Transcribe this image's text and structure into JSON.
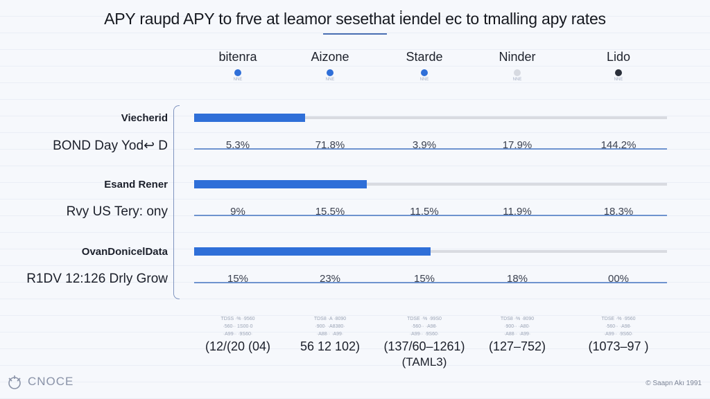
{
  "chart_data": {
    "type": "bar",
    "title": "APY raupd APY to frve at leamor sesethat i̇endel ec to tmalling apy rates",
    "providers": [
      {
        "name": "bitenra",
        "color": "#2f6fd8",
        "sub": "NNE"
      },
      {
        "name": "Aizone",
        "color": "#2f6fd8",
        "sub": "NNE"
      },
      {
        "name": "Starde",
        "color": "#2f6fd8",
        "sub": "NNE"
      },
      {
        "name": "Ninder",
        "color": "#d7dae1",
        "sub": "NNE"
      },
      {
        "name": "Lido",
        "color": "#2a2f3a",
        "sub": "NNE"
      }
    ],
    "groups": [
      {
        "bar_label": "Viecherid",
        "bar_value_pct": 23.5,
        "row_label": "BOND Day Yod↩ D",
        "cells": [
          "5.3%",
          "71.8%",
          "3.9%",
          "17.9%",
          "144.2%"
        ]
      },
      {
        "bar_label": "Esand Rener",
        "bar_value_pct": 36.5,
        "row_label": "Rvy US Tery: ony",
        "cells": [
          "9%",
          "15.5%",
          "11.5%",
          "11.9%",
          "18.3%"
        ]
      },
      {
        "bar_label": "OvanDonicelData",
        "bar_value_pct": 50,
        "row_label": "R1DV 12:126 Drly Grow",
        "cells": [
          "15%",
          "23%",
          "15%",
          "18%",
          "00%"
        ]
      }
    ],
    "footer": {
      "small_lines": [
        [
          "TDSS ·% ·9560",
          "·560·· 1S00·0",
          "·A99·· ·9S60·"
        ],
        [
          "TDS8 ·A ·8090",
          "·900·  ·A8380·",
          "·A88·· ·A99·"
        ],
        [
          "TDSE ·% ·99S0",
          "·560·· ·A98·",
          "·A99·· ·9S60·"
        ],
        [
          "TDS8 ·% ·8090",
          "·900·· ·A80·",
          "·A88·· ·A99·"
        ],
        [
          "TDSE ·% ·9560",
          "·560·· ·A98·",
          "·A99·· ·9S60·"
        ]
      ],
      "ranges": [
        "(12/(20 (04)",
        "56 12 102)",
        "(137/60–1261)",
        "(127–752)",
        "(1073–97 )"
      ],
      "extra": "(TAML3)"
    },
    "brand": "CNOCE",
    "copyright": "© Saapn Akı 1991"
  }
}
